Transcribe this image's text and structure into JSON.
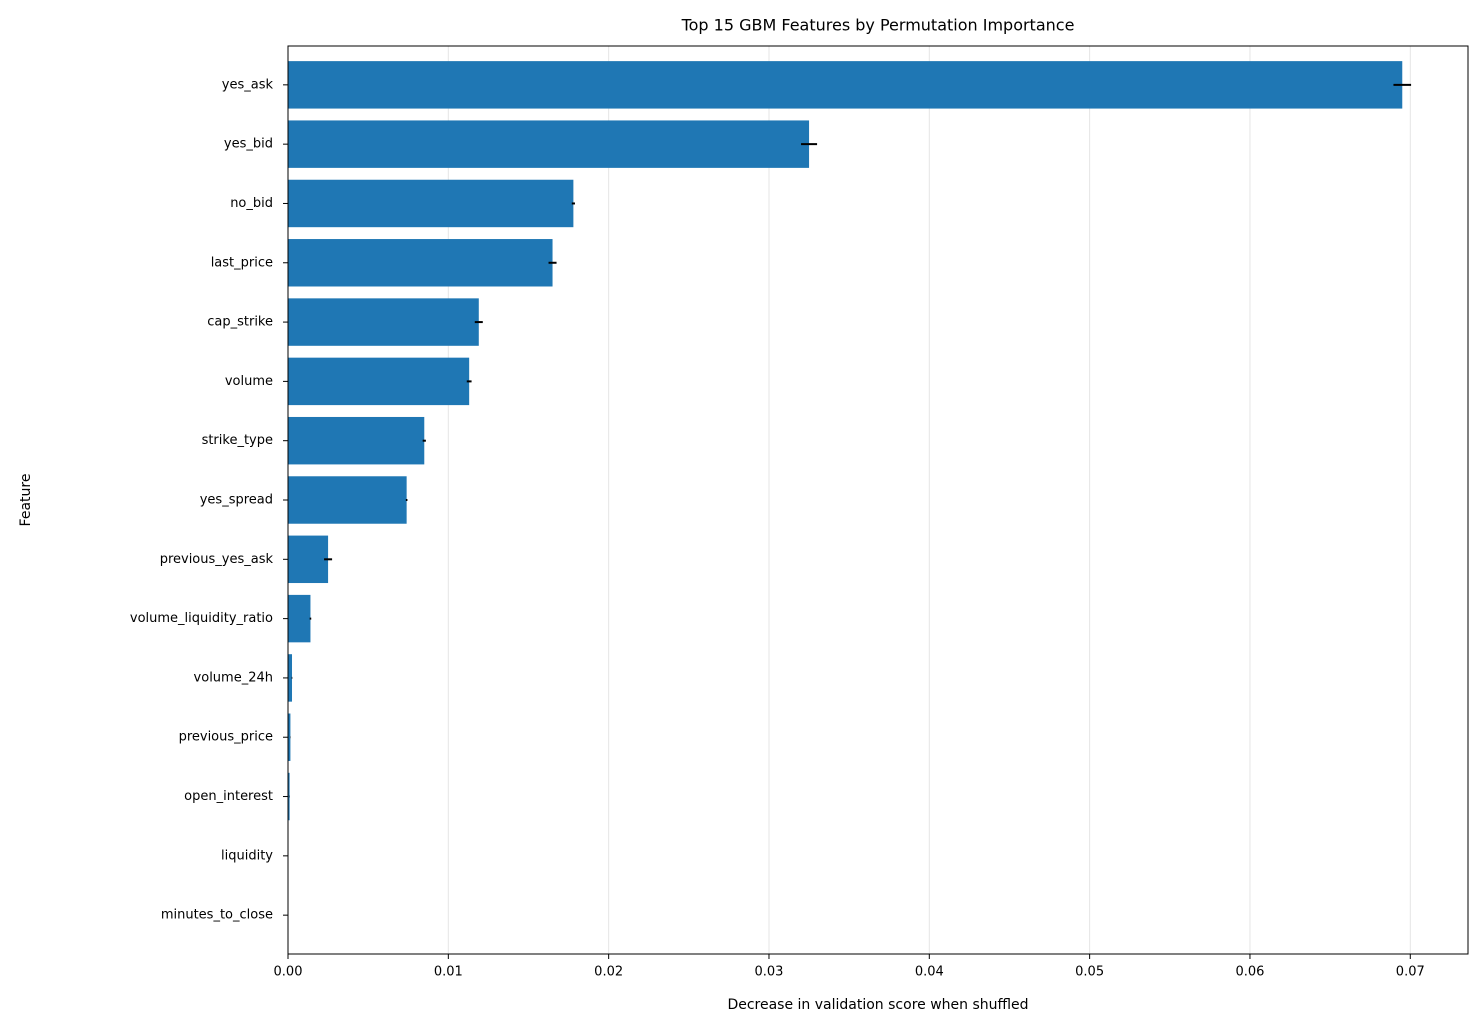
{
  "chart_data": {
    "type": "barh",
    "title": "Top 15 GBM Features by Permutation Importance",
    "x_label": "Decrease in validation score when shuffled",
    "y_label": "Feature",
    "categories": [
      "yes_ask",
      "yes_bid",
      "no_bid",
      "last_price",
      "cap_strike",
      "volume",
      "strike_type",
      "yes_spread",
      "previous_yes_ask",
      "volume_liquidity_ratio",
      "volume_24h",
      "previous_price",
      "open_interest",
      "liquidity",
      "minutes_to_close"
    ],
    "values": [
      0.0695,
      0.0325,
      0.0178,
      0.0165,
      0.0119,
      0.0113,
      0.0085,
      0.0074,
      0.0025,
      0.0014,
      0.00025,
      0.00015,
      0.0001,
      0,
      0
    ],
    "errors": [
      0.00055,
      0.0005,
      0.0001,
      0.00025,
      0.00025,
      0.00015,
      0.0001,
      5e-05,
      0.00025,
      5e-05,
      2e-05,
      1e-05,
      1e-05,
      0,
      0
    ],
    "color": "#1f77b4",
    "error_color": "#000000",
    "xlim": [
      0,
      0.0736
    ],
    "xticks": [
      {
        "value": 0,
        "label": "0.00"
      },
      0.01,
      0.02,
      0.03,
      0.04,
      0.05,
      0.06,
      0.07
    ],
    "grid": true
  }
}
